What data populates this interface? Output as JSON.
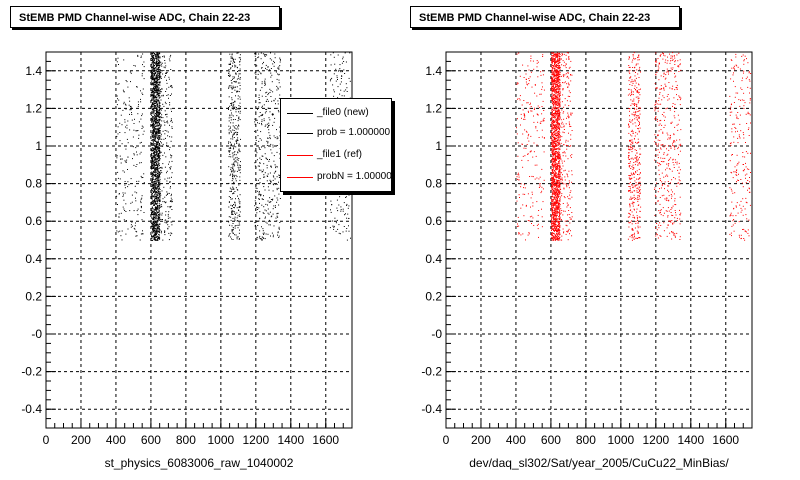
{
  "chart_data": [
    {
      "type": "scatter",
      "title": "StEMB PMD Channel-wise ADC, Chain 22-23",
      "xlabel": "st_physics_6083006_raw_1040002",
      "ylabel": "",
      "xlim": [
        0,
        1750
      ],
      "ylim": [
        -0.5,
        1.5
      ],
      "x_ticks": [
        0,
        200,
        400,
        600,
        800,
        1000,
        1200,
        1400,
        1600
      ],
      "y_ticks": [
        -0.4,
        -0.2,
        0,
        0.2,
        0.4,
        0.6,
        0.8,
        1,
        1.2,
        1.4
      ],
      "y_tick_labels": [
        "-0.4",
        "-0.2",
        "-0",
        "0.2",
        "0.4",
        "0.6",
        "0.8",
        "1",
        "1.2",
        "1.4"
      ],
      "grid": true,
      "color": "#000000",
      "y_range_points": [
        0.5,
        1.5
      ],
      "bands": [
        {
          "x_min": 400,
          "x_max": 560,
          "density": "sparse"
        },
        {
          "x_min": 600,
          "x_max": 650,
          "density": "dense"
        },
        {
          "x_min": 650,
          "x_max": 720,
          "density": "sparse"
        },
        {
          "x_min": 1040,
          "x_max": 1110,
          "density": "medium"
        },
        {
          "x_min": 1190,
          "x_max": 1340,
          "density": "medium"
        },
        {
          "x_min": 1620,
          "x_max": 1740,
          "density": "sparse"
        }
      ],
      "legend": {
        "placement": "right",
        "entries": [
          {
            "label": "_file0 (new)",
            "color": "#000000"
          },
          {
            "label": "prob = 1.000000",
            "color": "#000000"
          },
          {
            "label": "_file1 (ref)",
            "color": "#ff0000"
          },
          {
            "label": "probN = 1.000000",
            "color": "#ff0000"
          }
        ]
      }
    },
    {
      "type": "scatter",
      "title": "StEMB PMD Channel-wise ADC, Chain 22-23",
      "xlabel": "dev/daq_sl302/Sat/year_2005/CuCu22_MinBias/",
      "ylabel": "",
      "xlim": [
        0,
        1750
      ],
      "ylim": [
        -0.5,
        1.5
      ],
      "x_ticks": [
        0,
        200,
        400,
        600,
        800,
        1000,
        1200,
        1400,
        1600
      ],
      "y_ticks": [
        -0.4,
        -0.2,
        0,
        0.2,
        0.4,
        0.6,
        0.8,
        1,
        1.2,
        1.4
      ],
      "y_tick_labels": [
        "-0.4",
        "-0.2",
        "-0",
        "0.2",
        "0.4",
        "0.6",
        "0.8",
        "1",
        "1.2",
        "1.4"
      ],
      "grid": true,
      "color": "#ff0000",
      "y_range_points": [
        0.5,
        1.5
      ],
      "bands": [
        {
          "x_min": 400,
          "x_max": 560,
          "density": "sparse"
        },
        {
          "x_min": 600,
          "x_max": 650,
          "density": "dense"
        },
        {
          "x_min": 650,
          "x_max": 720,
          "density": "sparse"
        },
        {
          "x_min": 1040,
          "x_max": 1110,
          "density": "medium"
        },
        {
          "x_min": 1190,
          "x_max": 1340,
          "density": "medium"
        },
        {
          "x_min": 1620,
          "x_max": 1740,
          "density": "sparse"
        }
      ]
    }
  ]
}
